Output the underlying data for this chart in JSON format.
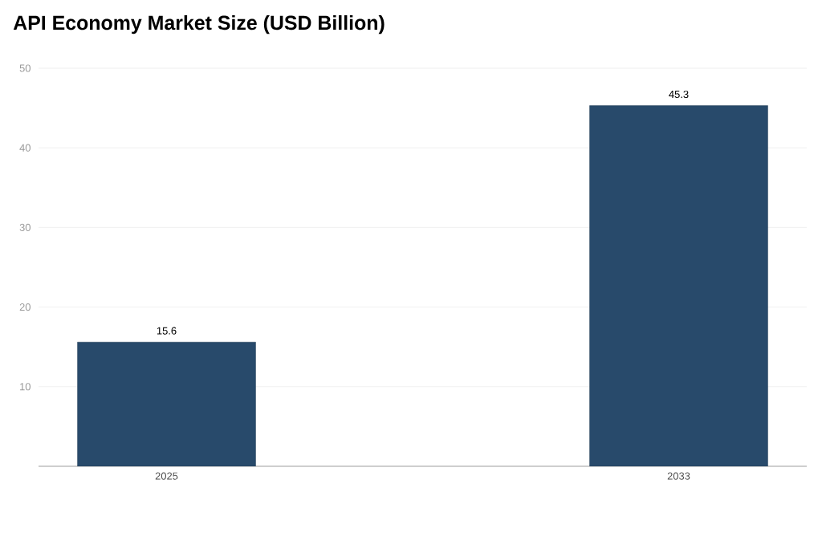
{
  "chart_data": {
    "type": "bar",
    "title": "API Economy Market Size (USD Billion)",
    "categories": [
      "2025",
      "2033"
    ],
    "values": [
      15.6,
      45.3
    ],
    "color": "#284a6b",
    "ylim": [
      0,
      50
    ],
    "yticks": [
      10,
      20,
      30,
      40,
      50
    ],
    "grid": "y",
    "data_labels": true
  }
}
